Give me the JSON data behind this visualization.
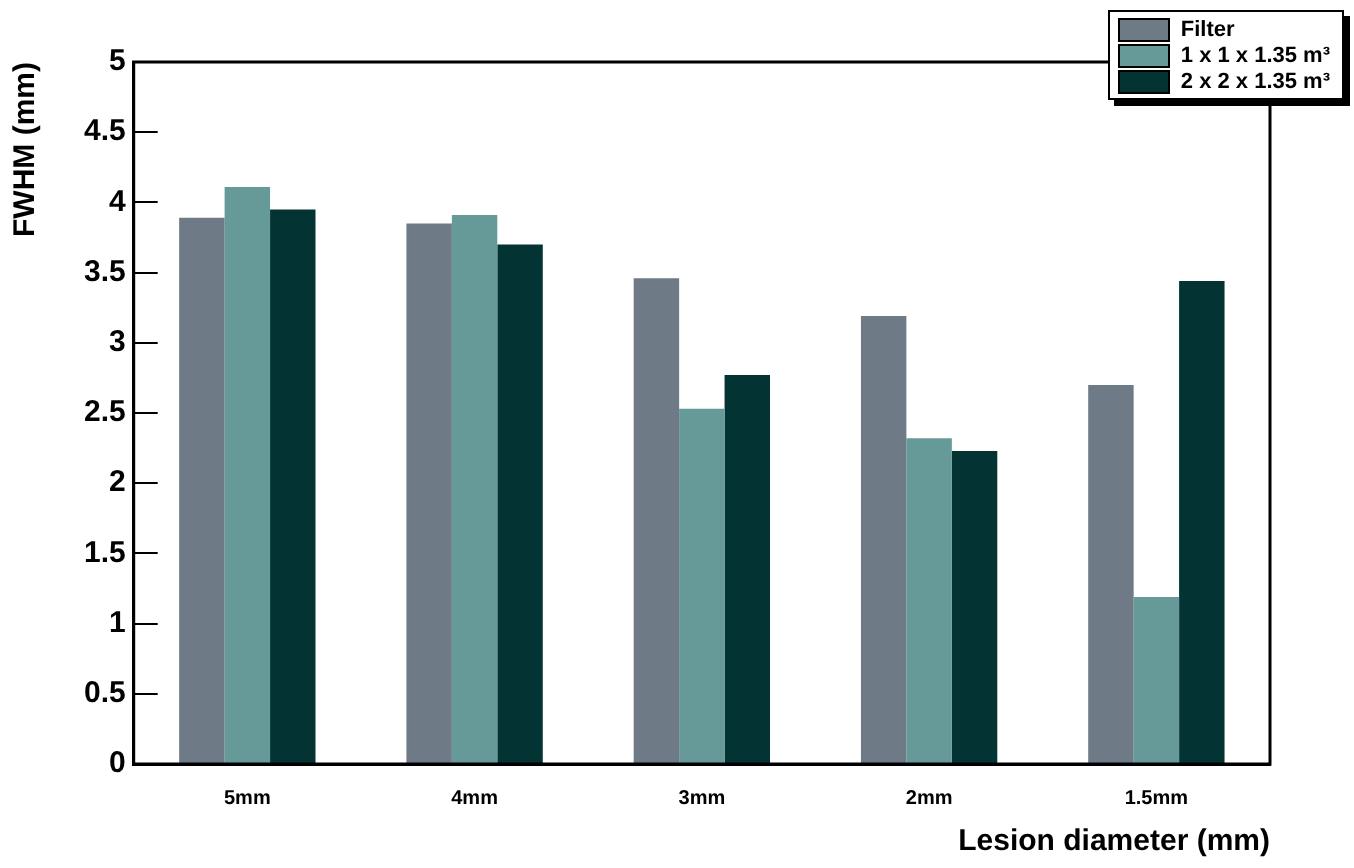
{
  "chart_data": {
    "type": "bar",
    "xlabel": "Lesion diameter (mm)",
    "ylabel": "FWHM (mm)",
    "categories": [
      "5mm",
      "4mm",
      "3mm",
      "2mm",
      "1.5mm"
    ],
    "series": [
      {
        "name": "Filter",
        "color": "#6e7a85",
        "values": [
          3.89,
          3.85,
          3.46,
          3.19,
          2.7
        ]
      },
      {
        "name": "1 x 1 x 1.35 m³",
        "color": "#659a99",
        "values": [
          4.11,
          3.91,
          2.53,
          2.32,
          1.19
        ]
      },
      {
        "name": "2 x 2 x 1.35 m³",
        "color": "#033333",
        "values": [
          3.95,
          3.7,
          2.77,
          2.23,
          3.44
        ]
      }
    ],
    "ylim": [
      0,
      5
    ],
    "yticks": [
      0,
      0.5,
      1,
      1.5,
      2,
      2.5,
      3,
      3.5,
      4,
      4.5,
      5
    ],
    "grid": false,
    "legend": "top right"
  }
}
